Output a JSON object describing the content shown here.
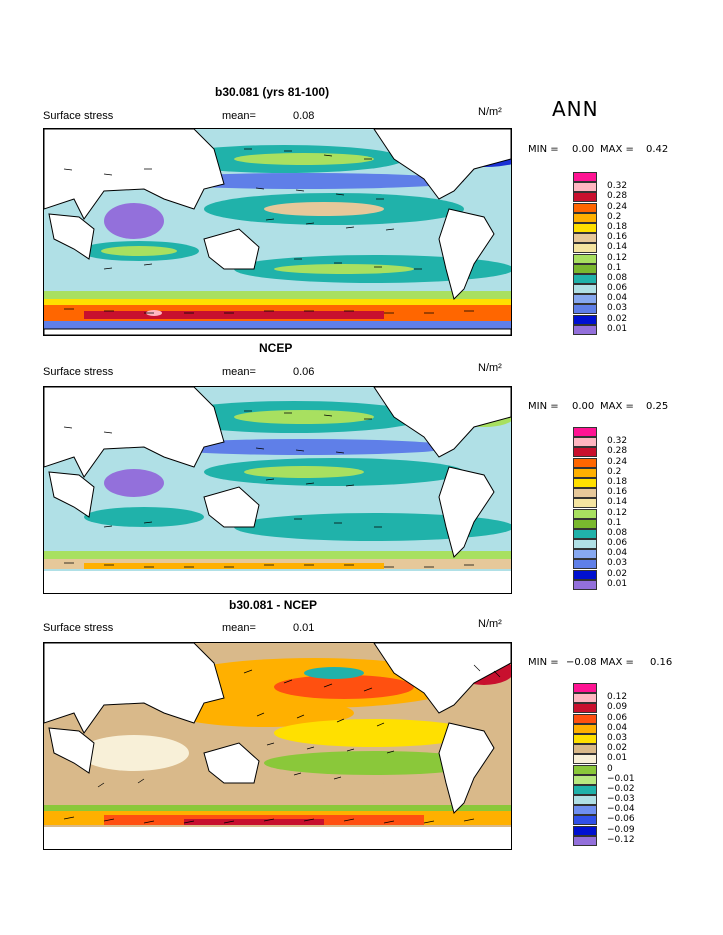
{
  "season": "ANN",
  "units": "N/m²",
  "panels": [
    {
      "title": "b30.081 (yrs 81-100)",
      "variable": "Surface stress",
      "mean_label": "mean=",
      "mean_value": "0.08",
      "min_label": "MIN =",
      "min_value": "0.00",
      "max_label": "MAX =",
      "max_value": "0.42",
      "legend": [
        "0.32",
        "0.28",
        "0.24",
        "0.2",
        "0.18",
        "0.16",
        "0.14",
        "0.12",
        "0.1",
        "0.08",
        "0.06",
        "0.04",
        "0.03",
        "0.02",
        "0.01"
      ],
      "colors": [
        "#ff1493",
        "#ffb6c1",
        "#c8102e",
        "#ff6600",
        "#ffb000",
        "#ffe000",
        "#e6c89a",
        "#a8e060",
        "#7ab82e",
        "#20b2aa",
        "#b0e0e6",
        "#87a8f0",
        "#5f7fe8",
        "#0010d0",
        "#9370db"
      ]
    },
    {
      "title": "NCEP",
      "variable": "Surface stress",
      "mean_label": "mean=",
      "mean_value": "0.06",
      "min_label": "MIN =",
      "min_value": "0.00",
      "max_label": "MAX =",
      "max_value": "0.25",
      "legend": [
        "0.32",
        "0.28",
        "0.24",
        "0.2",
        "0.18",
        "0.16",
        "0.14",
        "0.12",
        "0.1",
        "0.08",
        "0.06",
        "0.04",
        "0.03",
        "0.02",
        "0.01"
      ],
      "colors": [
        "#ff1493",
        "#ffb6c1",
        "#c8102e",
        "#ff6600",
        "#ffb000",
        "#ffe000",
        "#e6c89a",
        "#a8e060",
        "#7ab82e",
        "#20b2aa",
        "#b0e0e6",
        "#87a8f0",
        "#5f7fe8",
        "#0010d0",
        "#9370db"
      ]
    },
    {
      "title": "b30.081 - NCEP",
      "variable": "Surface stress",
      "mean_label": "mean=",
      "mean_value": "0.01",
      "min_label": "MIN =",
      "min_value": "−0.08",
      "max_label": "MAX =",
      "max_value": "0.16",
      "legend": [
        "0.12",
        "0.09",
        "0.06",
        "0.04",
        "0.03",
        "0.02",
        "0.01",
        "0",
        "−0.01",
        "−0.02",
        "−0.03",
        "−0.04",
        "−0.06",
        "−0.09",
        "−0.12"
      ],
      "colors": [
        "#ff1493",
        "#ffb6c1",
        "#c8102e",
        "#ff5010",
        "#ffb000",
        "#ffe000",
        "#d9b98a",
        "#f8f0d8",
        "#8ac83a",
        "#b8e880",
        "#20b2aa",
        "#b0e0e6",
        "#6f8ff0",
        "#0010d0",
        "#9370db"
      ]
    }
  ]
}
